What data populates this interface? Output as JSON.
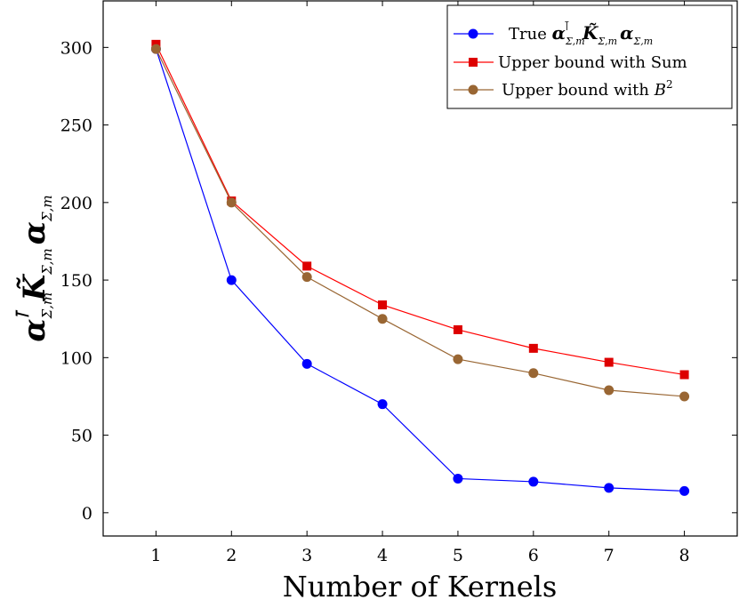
{
  "chart_data": {
    "type": "line",
    "xlabel": "Number of Kernels",
    "ylabel": "α_{Σ,m}^T K̃_{Σ,m} α_{Σ,m}",
    "x": [
      1,
      2,
      3,
      4,
      5,
      6,
      7,
      8
    ],
    "xlim": [
      0.3,
      8.7
    ],
    "ylim": [
      -15,
      330
    ],
    "xticks": [
      1,
      2,
      3,
      4,
      5,
      6,
      7,
      8
    ],
    "yticks": [
      0,
      50,
      100,
      150,
      200,
      250,
      300
    ],
    "grid": false,
    "legend_position": "top-right",
    "series": [
      {
        "name": "True α_{Σ,m}^T K̃_{Σ,m} α_{Σ,m}",
        "color": "#0000ff",
        "marker": "circle",
        "values": [
          299,
          150,
          96,
          70,
          22,
          20,
          16,
          14
        ]
      },
      {
        "name": "Upper bound with Sum",
        "color": "#ff0000",
        "marker": "square",
        "values": [
          302,
          201,
          159,
          134,
          118,
          106,
          97,
          89
        ]
      },
      {
        "name": "Upper bound with B^2",
        "color": "#996633",
        "marker": "circle",
        "values": [
          299,
          200,
          152,
          125,
          99,
          90,
          79,
          75
        ]
      }
    ]
  }
}
